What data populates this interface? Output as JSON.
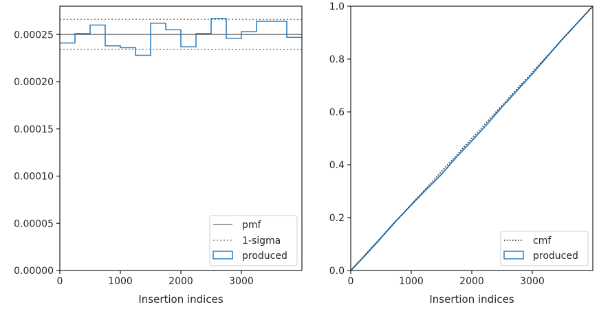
{
  "chart_data": [
    {
      "type": "histogram",
      "xlabel": "Insertion indices",
      "ylabel": "",
      "xlim": [
        0,
        4000
      ],
      "ylim": [
        0,
        0.00028
      ],
      "xticks": [
        "0",
        "1000",
        "2000",
        "3000"
      ],
      "yticks": [
        "0.00000",
        "0.00005",
        "0.00010",
        "0.00015",
        "0.00020",
        "0.00025"
      ],
      "grid": false,
      "legend_position": "lower right",
      "legend": [
        "pmf",
        "1-sigma",
        "produced"
      ],
      "pmf_level": 0.00025,
      "sigma_levels": [
        0.000234,
        0.000266
      ],
      "bin_edges": [
        0,
        250,
        500,
        750,
        1000,
        1250,
        1500,
        1750,
        2000,
        2250,
        2500,
        2750,
        3000,
        3250,
        3500,
        3750,
        4000
      ],
      "values": [
        0.000241,
        0.000251,
        0.00026,
        0.000238,
        0.000236,
        0.000228,
        0.000262,
        0.000255,
        0.000237,
        0.000251,
        0.000267,
        0.000246,
        0.000253,
        0.000264,
        0.000264,
        0.000247
      ],
      "colors": {
        "produced": "#2f7fbe",
        "pmf": "#808080",
        "sigma": "#808080"
      }
    },
    {
      "type": "line",
      "xlabel": "Insertion indices",
      "ylabel": "",
      "xlim": [
        0,
        4000
      ],
      "ylim": [
        0,
        1.0
      ],
      "xticks": [
        "0",
        "1000",
        "2000",
        "3000"
      ],
      "yticks": [
        "0.0",
        "0.2",
        "0.4",
        "0.6",
        "0.8",
        "1.0"
      ],
      "grid": false,
      "legend_position": "lower right",
      "legend": [
        "cmf",
        "produced"
      ],
      "series": [
        {
          "name": "cmf",
          "style": "dotted",
          "x": [
            0,
            4000
          ],
          "y": [
            0,
            1.0
          ]
        },
        {
          "name": "produced",
          "style": "step",
          "x": [
            0,
            250,
            500,
            750,
            1000,
            1250,
            1500,
            1750,
            2000,
            2250,
            2500,
            2750,
            3000,
            3250,
            3500,
            3750,
            4000
          ],
          "y": [
            0,
            0.06,
            0.123,
            0.188,
            0.248,
            0.307,
            0.364,
            0.43,
            0.49,
            0.553,
            0.619,
            0.681,
            0.744,
            0.81,
            0.876,
            0.938,
            1.0
          ]
        }
      ],
      "colors": {
        "produced": "#2f7fbe",
        "cmf": "#1a1a1a"
      }
    }
  ]
}
